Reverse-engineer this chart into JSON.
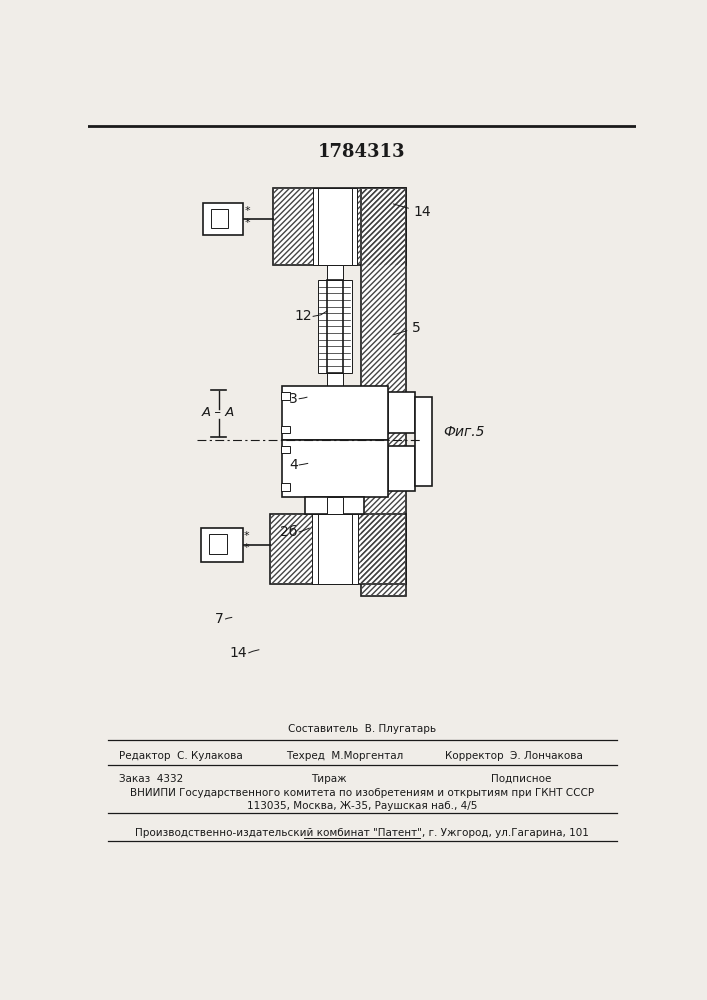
{
  "title": "1784313",
  "fig_label": "Фиг.5",
  "section_label": "А – А",
  "bg_color": "#f0ede8",
  "line_color": "#1a1a1a",
  "footer": {
    "line1": "Составитель  В. Плугатарь",
    "editor": "Редактор  С. Кулакова",
    "techred": "Техред  М.Моргентал",
    "corrector": "Корректор  Э. Лончакова",
    "zakaz": "Заказ  4332",
    "tirazh": "Тираж",
    "podpisnoe": "Подписное",
    "vniipи": "ВНИИПИ Государственного комитета по изобретениям и открытиям при ГКНТ СССР",
    "address": "113035, Москва, Ж-35, Раушская наб., 4/5",
    "patent": "Производственно-издательский комбинат \"Патент\", г. Ужгород, ул.Гагарина, 101"
  }
}
